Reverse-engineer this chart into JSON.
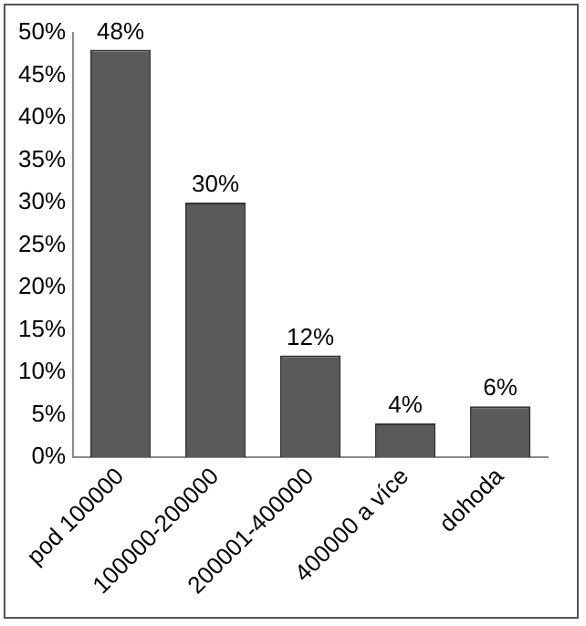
{
  "chart_data": {
    "type": "bar",
    "categories": [
      "pod 100000",
      "100000-200000",
      "200001-400000",
      "400000 a více",
      "dohoda"
    ],
    "values": [
      48,
      30,
      12,
      4,
      6
    ],
    "value_labels": [
      "48%",
      "30%",
      "12%",
      "4%",
      "6%"
    ],
    "color": "#5a5a5a",
    "ylim": [
      0,
      50
    ],
    "yticks": [
      {
        "value": 0,
        "label": "0%"
      },
      {
        "value": 5,
        "label": "5%"
      },
      {
        "value": 10,
        "label": "10%"
      },
      {
        "value": 15,
        "label": "15%"
      },
      {
        "value": 20,
        "label": "20%"
      },
      {
        "value": 25,
        "label": "25%"
      },
      {
        "value": 30,
        "label": "30%"
      },
      {
        "value": 35,
        "label": "35%"
      },
      {
        "value": 40,
        "label": "40%"
      },
      {
        "value": 45,
        "label": "45%"
      },
      {
        "value": 50,
        "label": "50%"
      }
    ],
    "grid": false,
    "legend": false
  }
}
